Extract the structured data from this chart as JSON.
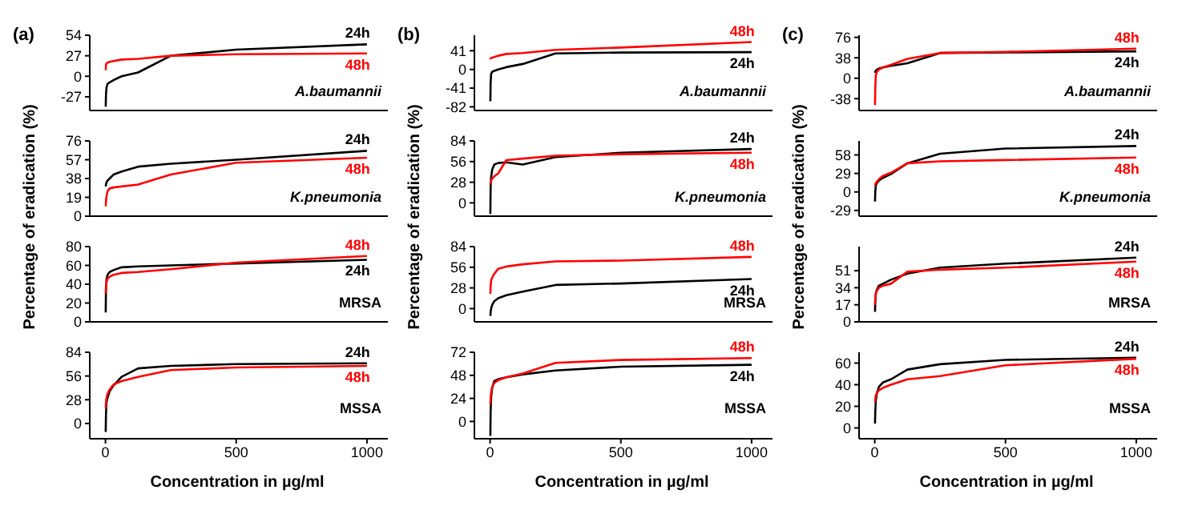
{
  "chart_data": [
    {
      "type": "line",
      "title": "(a)",
      "x": [
        1,
        2,
        4,
        8,
        16,
        31,
        62,
        125,
        250,
        500,
        1000
      ],
      "xlim": [
        -60,
        1080
      ],
      "xticks": [
        0,
        500,
        1000
      ],
      "ylim": [
        -45,
        54
      ],
      "yticks": [
        -27,
        0,
        27,
        54
      ],
      "tick_labels": "y",
      "annotations": [
        "A.baumannii"
      ],
      "series": [
        {
          "name": "24h",
          "color": "#000000",
          "values": [
            -40,
            -25,
            -15,
            -10,
            -8,
            -5,
            0,
            5,
            27,
            35,
            42
          ]
        },
        {
          "name": "48h",
          "color": "#ff0000",
          "values": [
            8,
            15,
            17,
            18,
            19,
            20,
            22,
            23,
            27,
            29,
            30
          ]
        }
      ]
    },
    {
      "type": "line",
      "title": "(b)",
      "x": [
        1,
        2,
        4,
        8,
        16,
        31,
        62,
        125,
        250,
        500,
        1000
      ],
      "xlim": [
        -60,
        1080
      ],
      "xticks": [
        0,
        500,
        1000
      ],
      "ylim": [
        -90,
        75
      ],
      "yticks": [
        -82,
        -41,
        0,
        41
      ],
      "tick_labels": "y",
      "annotations": [
        "A.baumannii"
      ],
      "series": [
        {
          "name": "24h",
          "color": "#000000",
          "values": [
            -70,
            -30,
            -10,
            -5,
            -3,
            0,
            5,
            12,
            35,
            37,
            38
          ]
        },
        {
          "name": "48h",
          "color": "#ff0000",
          "values": [
            22,
            24,
            25,
            26,
            27,
            30,
            34,
            36,
            43,
            48,
            60
          ]
        }
      ]
    },
    {
      "type": "line",
      "title": "(c)",
      "x": [
        1,
        2,
        4,
        8,
        16,
        31,
        62,
        125,
        250,
        500,
        1000
      ],
      "xlim": [
        -60,
        1080
      ],
      "xticks": [
        0,
        500,
        1000
      ],
      "ylim": [
        -60,
        80
      ],
      "yticks": [
        -38,
        0,
        38,
        76
      ],
      "tick_labels": "y",
      "annotations": [
        "A.baumannii"
      ],
      "series": [
        {
          "name": "24h",
          "color": "#000000",
          "values": [
            10,
            12,
            14,
            16,
            18,
            20,
            23,
            28,
            47,
            48,
            50
          ]
        },
        {
          "name": "48h",
          "color": "#ff0000",
          "values": [
            -50,
            -20,
            5,
            12,
            16,
            20,
            25,
            36,
            47,
            49,
            55
          ]
        }
      ]
    },
    {
      "type": "line",
      "ylabel": "Percentage of eradication (%)",
      "x": [
        1,
        2,
        4,
        8,
        16,
        31,
        62,
        125,
        250,
        500,
        1000
      ],
      "xlim": [
        -60,
        1080
      ],
      "xticks": [
        0,
        500,
        1000
      ],
      "ylim": [
        0,
        76
      ],
      "yticks": [
        0,
        19,
        38,
        57,
        76
      ],
      "tick_labels": "y",
      "annotations": [
        "K.pneumonia"
      ],
      "series": [
        {
          "name": "24h",
          "color": "#000000",
          "values": [
            30,
            32,
            34,
            36,
            38,
            42,
            45,
            50,
            53,
            57,
            66
          ]
        },
        {
          "name": "48h",
          "color": "#ff0000",
          "values": [
            10,
            15,
            20,
            25,
            28,
            29,
            30,
            32,
            42,
            54,
            59
          ]
        }
      ]
    },
    {
      "type": "line",
      "ylabel": "Percentage of eradication (%)",
      "x": [
        1,
        2,
        4,
        8,
        16,
        31,
        62,
        125,
        250,
        500,
        1000
      ],
      "xlim": [
        -60,
        1080
      ],
      "xticks": [
        0,
        500,
        1000
      ],
      "ylim": [
        -18,
        84
      ],
      "yticks": [
        0,
        28,
        56,
        84
      ],
      "tick_labels": "y",
      "annotations": [
        "K.pneumonia"
      ],
      "series": [
        {
          "name": "24h",
          "color": "#000000",
          "values": [
            -15,
            20,
            35,
            45,
            52,
            54,
            55,
            52,
            62,
            68,
            73
          ]
        },
        {
          "name": "48h",
          "color": "#ff0000",
          "values": [
            25,
            28,
            30,
            33,
            36,
            40,
            58,
            60,
            64,
            66,
            68
          ]
        }
      ]
    },
    {
      "type": "line",
      "ylabel": "Percentage of eradication (%)",
      "x": [
        1,
        2,
        4,
        8,
        16,
        31,
        62,
        125,
        250,
        500,
        1000
      ],
      "xlim": [
        -60,
        1080
      ],
      "xticks": [
        0,
        500,
        1000
      ],
      "ylim": [
        -38,
        80
      ],
      "yticks": [
        -29,
        0,
        29,
        58
      ],
      "tick_labels": "y",
      "annotations": [
        "K.pneumonia"
      ],
      "series": [
        {
          "name": "24h",
          "color": "#000000",
          "values": [
            -15,
            0,
            10,
            14,
            18,
            22,
            28,
            45,
            60,
            68,
            72
          ]
        },
        {
          "name": "48h",
          "color": "#ff0000",
          "values": [
            10,
            12,
            14,
            16,
            20,
            25,
            30,
            45,
            48,
            50,
            54
          ]
        }
      ]
    },
    {
      "type": "line",
      "x": [
        1,
        2,
        4,
        8,
        16,
        31,
        62,
        125,
        250,
        500,
        1000
      ],
      "xlim": [
        -60,
        1080
      ],
      "xticks": [
        0,
        500,
        1000
      ],
      "ylim": [
        0,
        80
      ],
      "yticks": [
        0,
        20,
        40,
        60,
        80
      ],
      "tick_labels": "y",
      "annotations": [
        "MRSA"
      ],
      "series": [
        {
          "name": "24h",
          "color": "#000000",
          "values": [
            10,
            35,
            45,
            50,
            53,
            55,
            58,
            59,
            60,
            62,
            66
          ]
        },
        {
          "name": "48h",
          "color": "#ff0000",
          "values": [
            30,
            35,
            42,
            46,
            48,
            50,
            52,
            53,
            56,
            63,
            70
          ]
        }
      ]
    },
    {
      "type": "line",
      "x": [
        1,
        2,
        4,
        8,
        16,
        31,
        62,
        125,
        250,
        500,
        1000
      ],
      "xlim": [
        -60,
        1080
      ],
      "xticks": [
        0,
        500,
        1000
      ],
      "ylim": [
        -18,
        84
      ],
      "yticks": [
        0,
        28,
        56,
        84
      ],
      "tick_labels": "y",
      "annotations": [
        "MRSA"
      ],
      "series": [
        {
          "name": "24h",
          "color": "#000000",
          "values": [
            -10,
            -5,
            0,
            5,
            10,
            14,
            18,
            23,
            32,
            34,
            40
          ]
        },
        {
          "name": "48h",
          "color": "#ff0000",
          "values": [
            20,
            30,
            38,
            42,
            47,
            54,
            57,
            60,
            64,
            65,
            70
          ]
        }
      ]
    },
    {
      "type": "line",
      "x": [
        1,
        2,
        4,
        8,
        16,
        31,
        62,
        125,
        250,
        500,
        1000
      ],
      "xlim": [
        -60,
        1080
      ],
      "xticks": [
        0,
        500,
        1000
      ],
      "ylim": [
        0,
        75
      ],
      "yticks": [
        0,
        17,
        34,
        51
      ],
      "tick_labels": "y",
      "annotations": [
        "MRSA"
      ],
      "series": [
        {
          "name": "24h",
          "color": "#000000",
          "values": [
            10,
            20,
            28,
            32,
            36,
            38,
            42,
            48,
            54,
            58,
            64
          ]
        },
        {
          "name": "48h",
          "color": "#ff0000",
          "values": [
            17,
            22,
            28,
            31,
            34,
            36,
            38,
            50,
            52,
            54,
            60
          ]
        }
      ]
    },
    {
      "type": "line",
      "xlabel": "Concentration in µg/ml",
      "x": [
        1,
        2,
        4,
        8,
        16,
        31,
        62,
        125,
        250,
        500,
        1000
      ],
      "xlim": [
        -60,
        1080
      ],
      "xticks": [
        0,
        500,
        1000
      ],
      "ylim": [
        -18,
        84
      ],
      "yticks": [
        0,
        28,
        56,
        84
      ],
      "annotations": [
        "MSSA"
      ],
      "series": [
        {
          "name": "24h",
          "color": "#000000",
          "values": [
            -10,
            10,
            25,
            30,
            38,
            45,
            55,
            65,
            68,
            70,
            71
          ]
        },
        {
          "name": "48h",
          "color": "#ff0000",
          "values": [
            18,
            25,
            30,
            35,
            40,
            46,
            50,
            55,
            63,
            66,
            68
          ]
        }
      ]
    },
    {
      "type": "line",
      "xlabel": "Concentration in µg/ml",
      "x": [
        1,
        2,
        4,
        8,
        16,
        31,
        62,
        125,
        250,
        500,
        1000
      ],
      "xlim": [
        -60,
        1080
      ],
      "xticks": [
        0,
        500,
        1000
      ],
      "ylim": [
        -18,
        72
      ],
      "yticks": [
        0,
        24,
        48,
        72
      ],
      "annotations": [
        "MSSA"
      ],
      "series": [
        {
          "name": "24h",
          "color": "#000000",
          "values": [
            -15,
            10,
            25,
            35,
            42,
            44,
            46,
            49,
            53,
            57,
            59
          ]
        },
        {
          "name": "48h",
          "color": "#ff0000",
          "values": [
            18,
            24,
            30,
            36,
            40,
            43,
            46,
            50,
            61,
            64,
            66
          ]
        }
      ]
    },
    {
      "type": "line",
      "xlabel": "Concentration in µg/ml",
      "x": [
        1,
        2,
        4,
        8,
        16,
        31,
        62,
        125,
        250,
        500,
        1000
      ],
      "xlim": [
        -60,
        1080
      ],
      "xticks": [
        0,
        500,
        1000
      ],
      "ylim": [
        -10,
        70
      ],
      "yticks": [
        0,
        20,
        40,
        60
      ],
      "annotations": [
        "MSSA"
      ],
      "series": [
        {
          "name": "24h",
          "color": "#000000",
          "values": [
            4,
            15,
            25,
            32,
            38,
            42,
            45,
            54,
            59,
            63,
            65
          ]
        },
        {
          "name": "48h",
          "color": "#ff0000",
          "values": [
            24,
            26,
            30,
            32,
            35,
            37,
            40,
            45,
            48,
            58,
            64
          ]
        }
      ]
    }
  ]
}
